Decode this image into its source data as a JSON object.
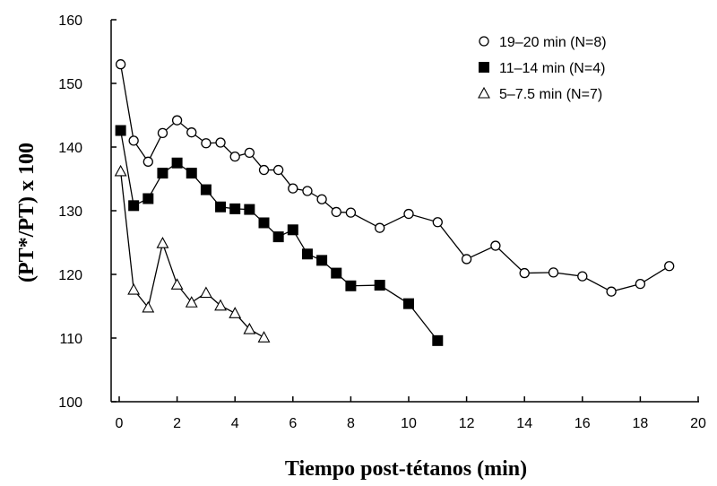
{
  "chart_data": {
    "type": "line",
    "title": "",
    "xlabel": "Tiempo post-tétanos (min)",
    "ylabel": "(PT*/PT) x 100",
    "xlim": [
      0,
      20
    ],
    "ylim": [
      100,
      160
    ],
    "xticks": [
      0,
      2,
      4,
      6,
      8,
      10,
      12,
      14,
      16,
      18,
      20
    ],
    "yticks": [
      100,
      110,
      120,
      130,
      140,
      150,
      160
    ],
    "grid": false,
    "legend_position": "top-right",
    "series": [
      {
        "name": "19–20 min (N=8)",
        "marker": "open-circle",
        "x": [
          0.05,
          0.5,
          1.0,
          1.5,
          2.0,
          2.5,
          3.0,
          3.5,
          4.0,
          4.5,
          5.0,
          5.5,
          6.0,
          6.5,
          7.0,
          7.5,
          8.0,
          9.0,
          10.0,
          11.0,
          12.0,
          13.0,
          14.0,
          15.0,
          16.0,
          17.0,
          18.0,
          19.0
        ],
        "y": [
          153.0,
          141.0,
          137.7,
          142.2,
          144.2,
          142.3,
          140.6,
          140.7,
          138.5,
          139.1,
          136.4,
          136.4,
          133.5,
          133.1,
          131.8,
          129.8,
          129.7,
          127.3,
          129.5,
          128.2,
          122.4,
          124.5,
          120.2,
          120.3,
          119.7,
          117.3,
          118.5,
          121.3
        ]
      },
      {
        "name": "11–14 min (N=4)",
        "marker": "filled-square",
        "x": [
          0.05,
          0.5,
          1.0,
          1.5,
          2.0,
          2.5,
          3.0,
          3.5,
          4.0,
          4.5,
          5.0,
          5.5,
          6.0,
          6.5,
          7.0,
          7.5,
          8.0,
          9.0,
          10.0,
          11.0
        ],
        "y": [
          142.6,
          130.8,
          131.9,
          135.9,
          137.5,
          135.9,
          133.3,
          130.6,
          130.3,
          130.2,
          128.1,
          125.9,
          127.0,
          123.2,
          122.2,
          120.2,
          118.2,
          118.3,
          115.4,
          109.6
        ]
      },
      {
        "name": "5–7.5 min (N=7)",
        "marker": "open-triangle",
        "x": [
          0.05,
          0.5,
          1.0,
          1.5,
          2.0,
          2.5,
          3.0,
          3.5,
          4.0,
          4.5,
          5.0
        ],
        "y": [
          136.2,
          117.6,
          114.8,
          124.9,
          118.4,
          115.6,
          117.1,
          115.1,
          113.9,
          111.4,
          110.1
        ]
      }
    ]
  }
}
